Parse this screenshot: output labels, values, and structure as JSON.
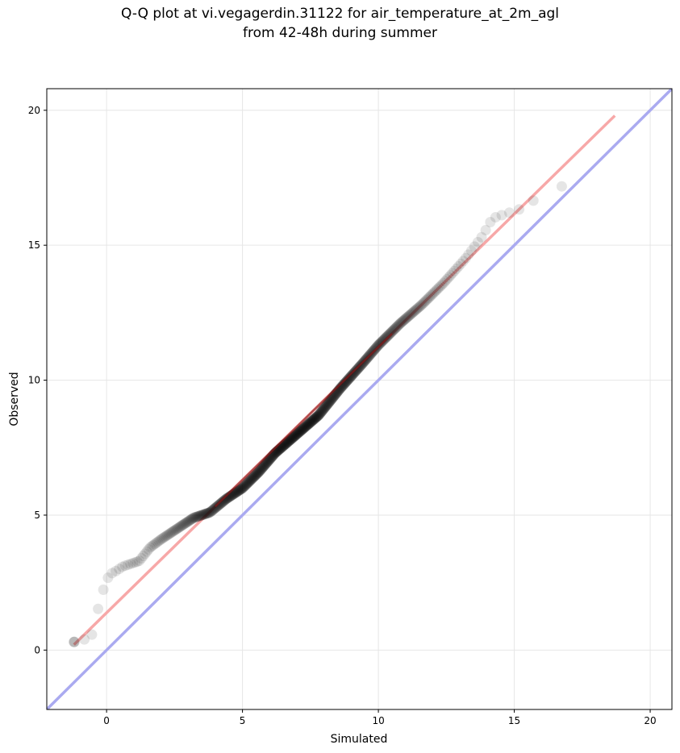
{
  "chart_data": {
    "type": "scatter",
    "title_line1": "Q-Q plot at vi.vegagerdin.31122 for air_temperature_at_2m_agl",
    "title_line2": "from 42-48h during summer",
    "xlabel": "Simulated",
    "ylabel": "Observed",
    "xlim": [
      -2.2,
      20.8
    ],
    "ylim": [
      -2.2,
      20.8
    ],
    "xticks": [
      0,
      5,
      10,
      15,
      20
    ],
    "yticks": [
      0,
      5,
      10,
      15,
      20
    ],
    "grid": true,
    "colors": {
      "points": "#000000",
      "identity_line": "#aaaaf0",
      "fit_line": "#f7a8a8",
      "fit_line_dense": "#8b1a1a",
      "grid": "#e6e6e6"
    },
    "identity_line": {
      "x": [
        -2.2,
        20.8
      ],
      "y": [
        -2.2,
        20.8
      ]
    },
    "fit_line": {
      "x": [
        -1.2,
        18.7
      ],
      "y": [
        0.2,
        19.8
      ]
    },
    "quantile_knots": [
      [
        -1.2,
        0.3
      ],
      [
        -0.8,
        0.4
      ],
      [
        -0.5,
        0.6
      ],
      [
        -0.4,
        1.0
      ],
      [
        -0.3,
        1.6
      ],
      [
        -0.1,
        2.3
      ],
      [
        0.1,
        2.8
      ],
      [
        0.3,
        2.9
      ],
      [
        0.6,
        3.1
      ],
      [
        1.2,
        3.3
      ],
      [
        1.6,
        3.8
      ],
      [
        2.0,
        4.1
      ],
      [
        2.6,
        4.5
      ],
      [
        3.2,
        4.9
      ],
      [
        3.8,
        5.1
      ],
      [
        4.4,
        5.6
      ],
      [
        5.0,
        6.0
      ],
      [
        5.6,
        6.6
      ],
      [
        6.2,
        7.3
      ],
      [
        7.0,
        8.0
      ],
      [
        7.8,
        8.7
      ],
      [
        8.6,
        9.7
      ],
      [
        9.4,
        10.6
      ],
      [
        10.0,
        11.3
      ],
      [
        10.8,
        12.1
      ],
      [
        11.6,
        12.8
      ],
      [
        12.4,
        13.6
      ],
      [
        13.2,
        14.5
      ],
      [
        13.8,
        15.3
      ],
      [
        14.2,
        16.0
      ],
      [
        14.8,
        16.2
      ],
      [
        15.4,
        16.4
      ],
      [
        16.0,
        16.9
      ],
      [
        16.8,
        17.2
      ],
      [
        17.6,
        17.6
      ],
      [
        18.7,
        18.2
      ]
    ],
    "point_count": 600,
    "dense_range": [
      4.0,
      10.5
    ]
  }
}
